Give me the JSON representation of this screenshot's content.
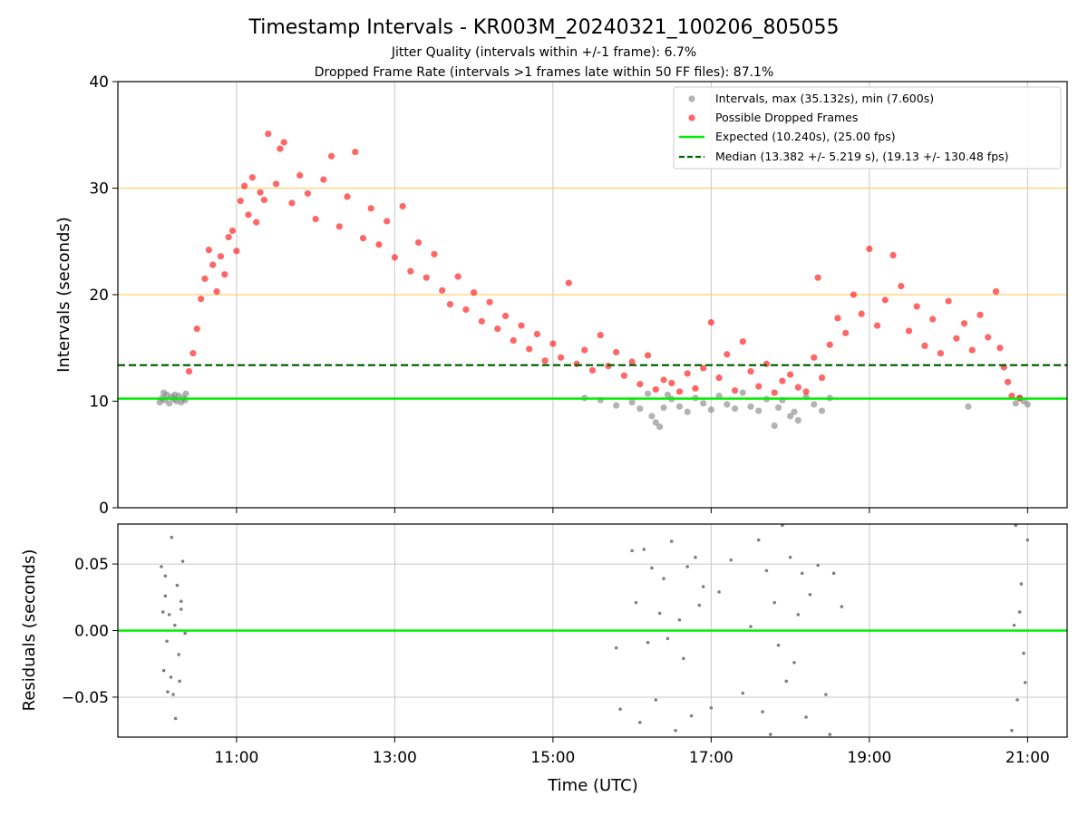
{
  "header": {
    "title": "Timestamp Intervals - KR003M_20240321_100206_805055",
    "subtitle_1": "Jitter Quality (intervals within +/-1 frame): 6.7%",
    "subtitle_2": "Dropped Frame Rate (intervals >1 frames late within 50 FF files): 87.1%"
  },
  "colors": {
    "intervals": "#808080",
    "dropped": "#ff0000",
    "expected": "#00ee00",
    "median": "#006400",
    "threshold": "#ffd070",
    "grid": "#c8c8c8"
  },
  "chart_data": [
    {
      "type": "scatter",
      "ylabel": "Intervals (seconds)",
      "xlabel": "",
      "ylim": [
        0,
        40
      ],
      "xlim_hours": [
        9.5,
        21.5
      ],
      "yticks": [
        0,
        10,
        20,
        30,
        40
      ],
      "grid": "vertical at x ticks",
      "threshold_lines": [
        20.0,
        30.0
      ],
      "legend": {
        "placement": "top-right",
        "entries": [
          "Intervals, max (35.132s), min (7.600s)",
          "Possible Dropped Frames",
          "Expected (10.240s), (25.00 fps)",
          "Median (13.382 +/- 5.219 s), (19.13 +/- 130.48 fps)"
        ]
      },
      "expected": 10.24,
      "median": 13.382,
      "max_interval": 35.132,
      "min_interval": 7.6,
      "series": [
        {
          "name": "Intervals, max (35.132s), min (7.600s)",
          "points": [
            [
              10.03,
              9.9
            ],
            [
              10.06,
              10.3
            ],
            [
              10.09,
              10.1
            ],
            [
              10.12,
              10.6
            ],
            [
              10.15,
              9.8
            ],
            [
              10.18,
              10.4
            ],
            [
              10.21,
              10.2
            ],
            [
              10.24,
              10.0
            ],
            [
              10.27,
              10.5
            ],
            [
              10.3,
              9.9
            ],
            [
              10.33,
              10.3
            ],
            [
              10.36,
              10.7
            ],
            [
              10.08,
              10.8
            ],
            [
              10.22,
              10.6
            ],
            [
              10.35,
              10.1
            ],
            [
              15.4,
              10.3
            ],
            [
              15.6,
              10.1
            ],
            [
              15.8,
              9.6
            ],
            [
              16.0,
              9.9
            ],
            [
              16.1,
              9.3
            ],
            [
              16.2,
              10.7
            ],
            [
              16.25,
              8.6
            ],
            [
              16.3,
              8.0
            ],
            [
              16.35,
              7.6
            ],
            [
              16.4,
              9.4
            ],
            [
              16.45,
              10.6
            ],
            [
              16.5,
              10.2
            ],
            [
              16.6,
              9.5
            ],
            [
              16.7,
              9.0
            ],
            [
              16.8,
              10.3
            ],
            [
              16.9,
              9.8
            ],
            [
              17.0,
              9.2
            ],
            [
              17.1,
              10.5
            ],
            [
              17.2,
              9.7
            ],
            [
              17.3,
              9.3
            ],
            [
              17.4,
              10.8
            ],
            [
              17.5,
              9.5
            ],
            [
              17.6,
              9.1
            ],
            [
              17.7,
              10.2
            ],
            [
              17.8,
              7.7
            ],
            [
              17.85,
              9.4
            ],
            [
              17.9,
              10.1
            ],
            [
              18.0,
              8.6
            ],
            [
              18.05,
              9.0
            ],
            [
              18.1,
              8.2
            ],
            [
              18.2,
              10.4
            ],
            [
              18.3,
              9.7
            ],
            [
              18.4,
              9.1
            ],
            [
              18.5,
              10.3
            ],
            [
              20.25,
              9.5
            ],
            [
              20.85,
              9.8
            ],
            [
              20.9,
              10.3
            ],
            [
              20.95,
              10.0
            ],
            [
              21.0,
              9.7
            ]
          ]
        },
        {
          "name": "Possible Dropped Frames",
          "points": [
            [
              10.4,
              12.8
            ],
            [
              10.45,
              14.5
            ],
            [
              10.5,
              16.8
            ],
            [
              10.55,
              19.6
            ],
            [
              10.6,
              21.5
            ],
            [
              10.65,
              24.2
            ],
            [
              10.7,
              22.8
            ],
            [
              10.75,
              20.3
            ],
            [
              10.8,
              23.6
            ],
            [
              10.85,
              21.9
            ],
            [
              10.9,
              25.4
            ],
            [
              10.95,
              26.0
            ],
            [
              11.0,
              24.1
            ],
            [
              11.05,
              28.8
            ],
            [
              11.1,
              30.2
            ],
            [
              11.15,
              27.5
            ],
            [
              11.2,
              31.0
            ],
            [
              11.25,
              26.8
            ],
            [
              11.3,
              29.6
            ],
            [
              11.35,
              28.9
            ],
            [
              11.4,
              35.1
            ],
            [
              11.5,
              30.4
            ],
            [
              11.55,
              33.7
            ],
            [
              11.6,
              34.3
            ],
            [
              11.7,
              28.6
            ],
            [
              11.8,
              31.2
            ],
            [
              11.9,
              29.5
            ],
            [
              12.0,
              27.1
            ],
            [
              12.1,
              30.8
            ],
            [
              12.2,
              33.0
            ],
            [
              12.3,
              26.4
            ],
            [
              12.4,
              29.2
            ],
            [
              12.5,
              33.4
            ],
            [
              12.6,
              25.3
            ],
            [
              12.7,
              28.1
            ],
            [
              12.8,
              24.7
            ],
            [
              12.9,
              26.9
            ],
            [
              13.0,
              23.5
            ],
            [
              13.1,
              28.3
            ],
            [
              13.2,
              22.2
            ],
            [
              13.3,
              24.9
            ],
            [
              13.4,
              21.6
            ],
            [
              13.5,
              23.8
            ],
            [
              13.6,
              20.4
            ],
            [
              13.7,
              19.1
            ],
            [
              13.8,
              21.7
            ],
            [
              13.9,
              18.6
            ],
            [
              14.0,
              20.2
            ],
            [
              14.1,
              17.5
            ],
            [
              14.2,
              19.3
            ],
            [
              14.3,
              16.8
            ],
            [
              14.4,
              18.0
            ],
            [
              14.5,
              15.7
            ],
            [
              14.6,
              17.1
            ],
            [
              14.7,
              14.9
            ],
            [
              14.8,
              16.3
            ],
            [
              14.9,
              13.8
            ],
            [
              15.0,
              15.4
            ],
            [
              15.1,
              14.1
            ],
            [
              15.2,
              21.1
            ],
            [
              15.3,
              13.5
            ],
            [
              15.4,
              14.8
            ],
            [
              15.5,
              12.9
            ],
            [
              15.6,
              16.2
            ],
            [
              15.7,
              13.3
            ],
            [
              15.8,
              14.6
            ],
            [
              15.9,
              12.4
            ],
            [
              16.0,
              13.7
            ],
            [
              16.1,
              11.6
            ],
            [
              16.2,
              14.3
            ],
            [
              16.3,
              11.1
            ],
            [
              16.4,
              12.0
            ],
            [
              16.5,
              11.7
            ],
            [
              16.6,
              10.9
            ],
            [
              16.7,
              12.6
            ],
            [
              16.8,
              11.2
            ],
            [
              16.9,
              13.1
            ],
            [
              17.0,
              17.4
            ],
            [
              17.1,
              12.2
            ],
            [
              17.2,
              14.4
            ],
            [
              17.3,
              11.0
            ],
            [
              17.4,
              15.6
            ],
            [
              17.5,
              12.8
            ],
            [
              17.6,
              11.4
            ],
            [
              17.7,
              13.5
            ],
            [
              17.8,
              10.8
            ],
            [
              17.9,
              11.9
            ],
            [
              18.0,
              12.5
            ],
            [
              18.1,
              11.3
            ],
            [
              18.2,
              10.9
            ],
            [
              18.3,
              14.1
            ],
            [
              18.35,
              21.6
            ],
            [
              18.4,
              12.2
            ],
            [
              18.5,
              15.3
            ],
            [
              18.6,
              17.8
            ],
            [
              18.7,
              16.4
            ],
            [
              18.8,
              20.0
            ],
            [
              18.9,
              18.2
            ],
            [
              19.0,
              24.3
            ],
            [
              19.1,
              17.1
            ],
            [
              19.2,
              19.5
            ],
            [
              19.3,
              23.7
            ],
            [
              19.4,
              20.8
            ],
            [
              19.5,
              16.6
            ],
            [
              19.6,
              18.9
            ],
            [
              19.7,
              15.2
            ],
            [
              19.8,
              17.7
            ],
            [
              19.9,
              14.5
            ],
            [
              20.0,
              19.4
            ],
            [
              20.1,
              15.9
            ],
            [
              20.2,
              17.3
            ],
            [
              20.3,
              14.8
            ],
            [
              20.4,
              18.1
            ],
            [
              20.5,
              16.0
            ],
            [
              20.6,
              20.3
            ],
            [
              20.65,
              15.0
            ],
            [
              20.7,
              13.2
            ],
            [
              20.75,
              11.8
            ],
            [
              20.8,
              10.5
            ],
            [
              20.9,
              10.3
            ]
          ]
        }
      ]
    },
    {
      "type": "scatter",
      "ylabel": "Residuals (seconds)",
      "xlabel": "Time (UTC)",
      "ylim": [
        -0.08,
        0.08
      ],
      "xlim_hours": [
        9.5,
        21.5
      ],
      "yticks": [
        -0.05,
        0.0,
        0.05
      ],
      "ytick_labels": [
        "−0.05",
        "0.00",
        "0.05"
      ],
      "xticks": [
        11,
        13,
        15,
        17,
        19,
        21
      ],
      "xtick_labels": [
        "11:00",
        "13:00",
        "15:00",
        "17:00",
        "19:00",
        "21:00"
      ],
      "grid": "on",
      "zero_line": 0.0,
      "series": [
        {
          "name": "",
          "points": [
            [
              10.05,
              0.048
            ],
            [
              10.08,
              -0.03
            ],
            [
              10.1,
              0.026
            ],
            [
              10.12,
              -0.008
            ],
            [
              10.15,
              0.012
            ],
            [
              10.18,
              0.07
            ],
            [
              10.2,
              -0.048
            ],
            [
              10.22,
              0.004
            ],
            [
              10.25,
              0.034
            ],
            [
              10.27,
              -0.018
            ],
            [
              10.3,
              0.016
            ],
            [
              10.32,
              0.052
            ],
            [
              10.35,
              -0.002
            ],
            [
              10.07,
              0.014
            ],
            [
              10.17,
              -0.035
            ],
            [
              10.28,
              -0.038
            ],
            [
              10.23,
              -0.066
            ],
            [
              10.13,
              -0.046
            ],
            [
              10.3,
              0.022
            ],
            [
              10.1,
              0.041
            ],
            [
              15.8,
              -0.013
            ],
            [
              15.85,
              -0.059
            ],
            [
              16.0,
              0.06
            ],
            [
              16.05,
              0.021
            ],
            [
              16.1,
              -0.069
            ],
            [
              16.15,
              0.061
            ],
            [
              16.2,
              -0.009
            ],
            [
              16.25,
              0.047
            ],
            [
              16.3,
              -0.052
            ],
            [
              16.35,
              0.013
            ],
            [
              16.4,
              0.039
            ],
            [
              16.45,
              -0.006
            ],
            [
              16.5,
              0.067
            ],
            [
              16.55,
              -0.075
            ],
            [
              16.6,
              0.008
            ],
            [
              16.65,
              -0.021
            ],
            [
              16.7,
              0.048
            ],
            [
              16.75,
              -0.064
            ],
            [
              16.8,
              0.055
            ],
            [
              16.85,
              0.019
            ],
            [
              16.9,
              0.033
            ],
            [
              17.0,
              -0.058
            ],
            [
              17.1,
              0.029
            ],
            [
              17.25,
              0.053
            ],
            [
              17.4,
              -0.047
            ],
            [
              17.5,
              0.003
            ],
            [
              17.6,
              0.068
            ],
            [
              17.65,
              -0.061
            ],
            [
              17.7,
              0.045
            ],
            [
              17.75,
              -0.078
            ],
            [
              17.8,
              0.021
            ],
            [
              17.85,
              -0.011
            ],
            [
              17.9,
              0.079
            ],
            [
              17.95,
              -0.038
            ],
            [
              18.0,
              0.055
            ],
            [
              18.05,
              -0.024
            ],
            [
              18.1,
              0.012
            ],
            [
              18.15,
              0.043
            ],
            [
              18.2,
              -0.065
            ],
            [
              18.25,
              0.027
            ],
            [
              18.35,
              0.049
            ],
            [
              18.45,
              -0.048
            ],
            [
              18.5,
              -0.078
            ],
            [
              18.55,
              0.043
            ],
            [
              18.65,
              0.018
            ],
            [
              20.8,
              -0.075
            ],
            [
              20.85,
              0.079
            ],
            [
              20.9,
              0.014
            ],
            [
              20.95,
              -0.017
            ],
            [
              21.0,
              0.068
            ],
            [
              20.87,
              -0.052
            ],
            [
              20.92,
              0.035
            ],
            [
              20.97,
              -0.039
            ],
            [
              20.83,
              0.004
            ]
          ]
        }
      ]
    }
  ]
}
